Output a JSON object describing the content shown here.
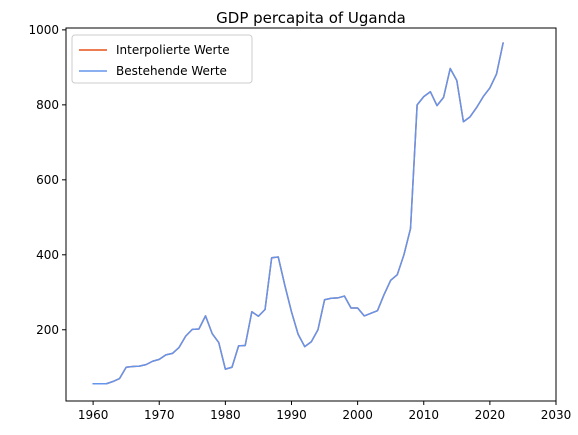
{
  "chart_data": {
    "type": "line",
    "title": "GDP percapita of Uganda",
    "xlabel": "",
    "ylabel": "",
    "xlim": [
      1955.9,
      2030
    ],
    "ylim": [
      10,
      1005
    ],
    "xticks": [
      1960,
      1970,
      1980,
      1990,
      2000,
      2010,
      2020,
      2030
    ],
    "yticks": [
      200,
      400,
      600,
      800,
      1000
    ],
    "legend_position": "top-left",
    "grid": false,
    "x": [
      1960,
      1961,
      1962,
      1963,
      1964,
      1965,
      1966,
      1967,
      1968,
      1969,
      1970,
      1971,
      1972,
      1973,
      1974,
      1975,
      1976,
      1977,
      1978,
      1979,
      1980,
      1981,
      1982,
      1983,
      1984,
      1985,
      1986,
      1987,
      1988,
      1989,
      1990,
      1991,
      1992,
      1993,
      1994,
      1995,
      1996,
      1997,
      1998,
      1999,
      2000,
      2001,
      2002,
      2003,
      2004,
      2005,
      2006,
      2007,
      2008,
      2009,
      2010,
      2011,
      2012,
      2013,
      2014,
      2015,
      2016,
      2017,
      2018,
      2019,
      2020,
      2021,
      2022
    ],
    "series": [
      {
        "name": "Interpolierte Werte",
        "color": "#e8501a",
        "values": [
          56,
          56,
          56,
          62,
          70,
          100,
          102,
          103,
          107,
          116,
          121,
          133,
          137,
          153,
          183,
          201,
          202,
          237,
          190,
          166,
          95,
          100,
          157,
          158,
          248,
          236,
          254,
          392,
          394,
          318,
          248,
          188,
          155,
          168,
          200,
          280,
          284,
          285,
          290,
          258,
          258,
          237,
          244,
          251,
          294,
          332,
          347,
          400,
          470,
          800,
          822,
          835,
          798,
          820,
          897,
          865,
          755,
          768,
          793,
          822,
          845,
          882,
          965
        ]
      },
      {
        "name": "Bestehende Werte",
        "color": "#6495ed",
        "values": [
          56,
          56,
          56,
          62,
          70,
          100,
          102,
          103,
          107,
          116,
          121,
          133,
          137,
          153,
          183,
          201,
          202,
          237,
          190,
          166,
          95,
          100,
          157,
          158,
          248,
          236,
          254,
          392,
          394,
          318,
          248,
          188,
          155,
          168,
          200,
          280,
          284,
          285,
          290,
          258,
          258,
          237,
          244,
          251,
          294,
          332,
          347,
          400,
          470,
          800,
          822,
          835,
          798,
          820,
          897,
          865,
          755,
          768,
          793,
          822,
          845,
          882,
          965
        ]
      }
    ]
  }
}
